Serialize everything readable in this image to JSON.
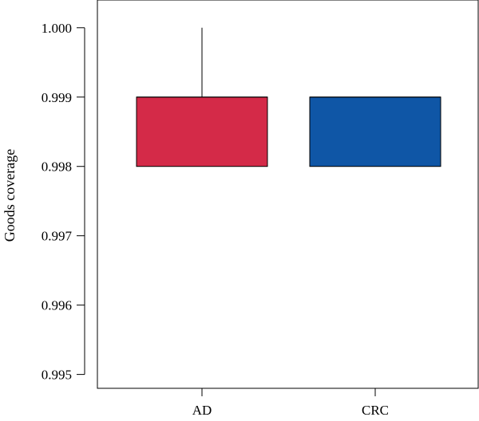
{
  "chart_data": {
    "type": "box",
    "title": "",
    "xlabel": "",
    "ylabel": "Goods coverage",
    "ylim": [
      0.9948,
      1.0004
    ],
    "yticks": [
      "1.000",
      "0.999",
      "0.998",
      "0.997",
      "0.996",
      "0.995"
    ],
    "grid": false,
    "legend": "none",
    "categories": [
      "AD",
      "CRC"
    ],
    "series": [
      {
        "category": "AD",
        "min": 0.998,
        "q1": 0.998,
        "median": 0.999,
        "q3": 0.999,
        "max": 1.0,
        "color": "#d42a48"
      },
      {
        "category": "CRC",
        "min": 0.998,
        "q1": 0.998,
        "median": 0.999,
        "q3": 0.999,
        "max": 0.999,
        "color": "#0f56a6"
      }
    ]
  }
}
